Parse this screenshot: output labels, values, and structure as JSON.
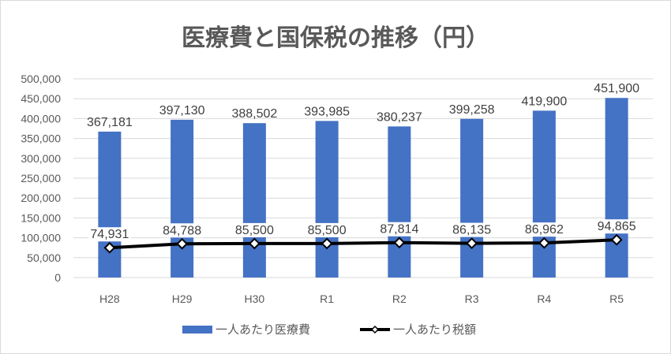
{
  "chart_data": {
    "type": "bar+line",
    "title": "医療費と国保税の推移（円）",
    "categories": [
      "H28",
      "H29",
      "H30",
      "R1",
      "R2",
      "R3",
      "R4",
      "R5"
    ],
    "series": [
      {
        "name": "一人あたり医療費",
        "type": "bar",
        "color": "#4472c4",
        "values": [
          367181,
          397130,
          388502,
          393985,
          380237,
          399258,
          419900,
          451900
        ],
        "labels": [
          "367,181",
          "397,130",
          "388,502",
          "393,985",
          "380,237",
          "399,258",
          "419,900",
          "451,900"
        ]
      },
      {
        "name": "一人あたり税額",
        "type": "line",
        "color": "#000000",
        "values": [
          74931,
          84788,
          85500,
          85500,
          87814,
          86135,
          86962,
          94865
        ],
        "labels": [
          "74,931",
          "84,788",
          "85,500",
          "85,500",
          "87,814",
          "86,135",
          "86,962",
          "94,865"
        ]
      }
    ],
    "y_ticks": [
      "0",
      "50,000",
      "100,000",
      "150,000",
      "200,000",
      "250,000",
      "300,000",
      "350,000",
      "400,000",
      "450,000",
      "500,000"
    ],
    "ylim": [
      0,
      500000
    ],
    "grid": true,
    "legend_position": "bottom"
  }
}
